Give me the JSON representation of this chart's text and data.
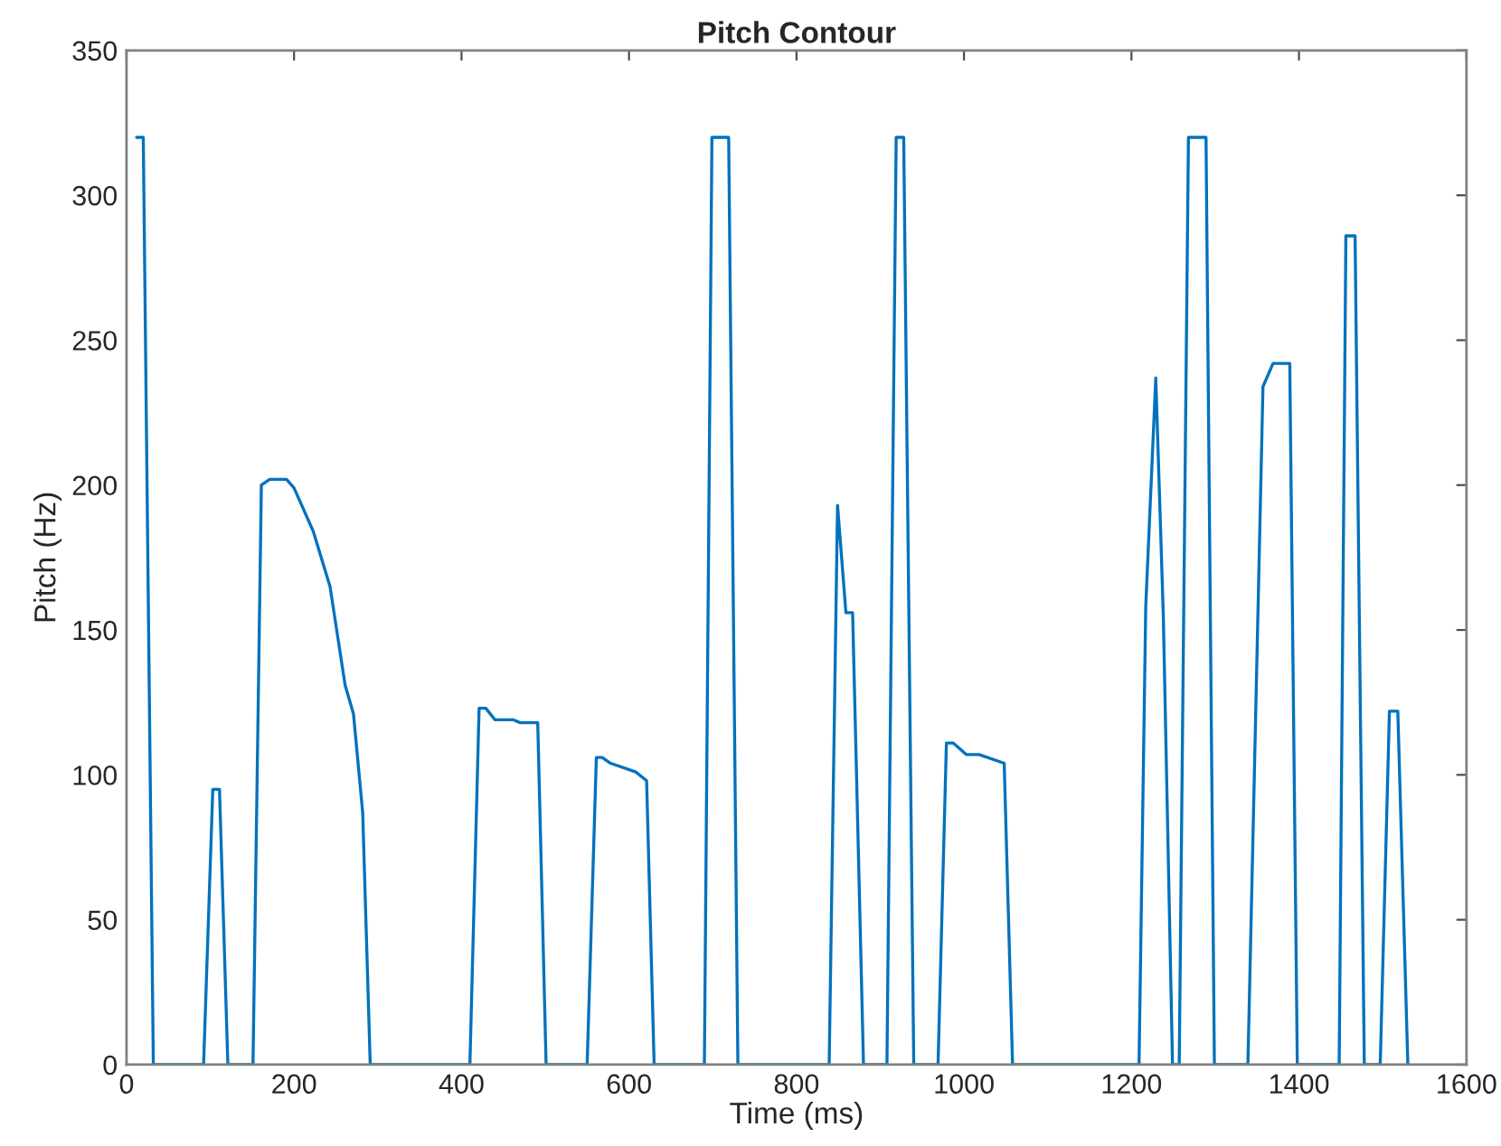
{
  "chart_data": {
    "type": "line",
    "title": "Pitch Contour",
    "xlabel": "Time (ms)",
    "ylabel": "Pitch (Hz)",
    "x": [
      12,
      20,
      32,
      92,
      103,
      111,
      121,
      151,
      161,
      171,
      191,
      200,
      223,
      243,
      261,
      271,
      282,
      291,
      410,
      421,
      429,
      440,
      462,
      470,
      491,
      501,
      550,
      561,
      568,
      578,
      608,
      621,
      630,
      690,
      699,
      719,
      730,
      839,
      849,
      859,
      867,
      880,
      908,
      919,
      928,
      940,
      969,
      979,
      987,
      1003,
      1018,
      1048,
      1058,
      1209,
      1217,
      1229,
      1238,
      1249,
      1257,
      1268,
      1289,
      1299,
      1339,
      1357,
      1369,
      1389,
      1398,
      1448,
      1456,
      1467,
      1478,
      1497,
      1508,
      1518,
      1530
    ],
    "series": [
      {
        "color": "#0072bd",
        "values": [
          320,
          320,
          0,
          0,
          95,
          95,
          0,
          0,
          200,
          202,
          202,
          199,
          184,
          165,
          131,
          121,
          87,
          0,
          0,
          123,
          123,
          119,
          119,
          118,
          118,
          0,
          0,
          106,
          106,
          104,
          101,
          98,
          0,
          0,
          320,
          320,
          0,
          0,
          193,
          156,
          156,
          0,
          0,
          320,
          320,
          0,
          0,
          111,
          111,
          107,
          107,
          104,
          0,
          0,
          158,
          237,
          155,
          0,
          0,
          320,
          320,
          0,
          0,
          234,
          242,
          242,
          0,
          0,
          286,
          286,
          0,
          0,
          122,
          122,
          0
        ]
      }
    ],
    "xlim": [
      0,
      1600
    ],
    "ylim": [
      0,
      350
    ],
    "xticks": [
      0,
      200,
      400,
      600,
      800,
      1000,
      1200,
      1400,
      1600
    ],
    "yticks": [
      0,
      50,
      100,
      150,
      200,
      250,
      300,
      350
    ],
    "grid": false,
    "marker": "none",
    "line_style": "solid"
  }
}
